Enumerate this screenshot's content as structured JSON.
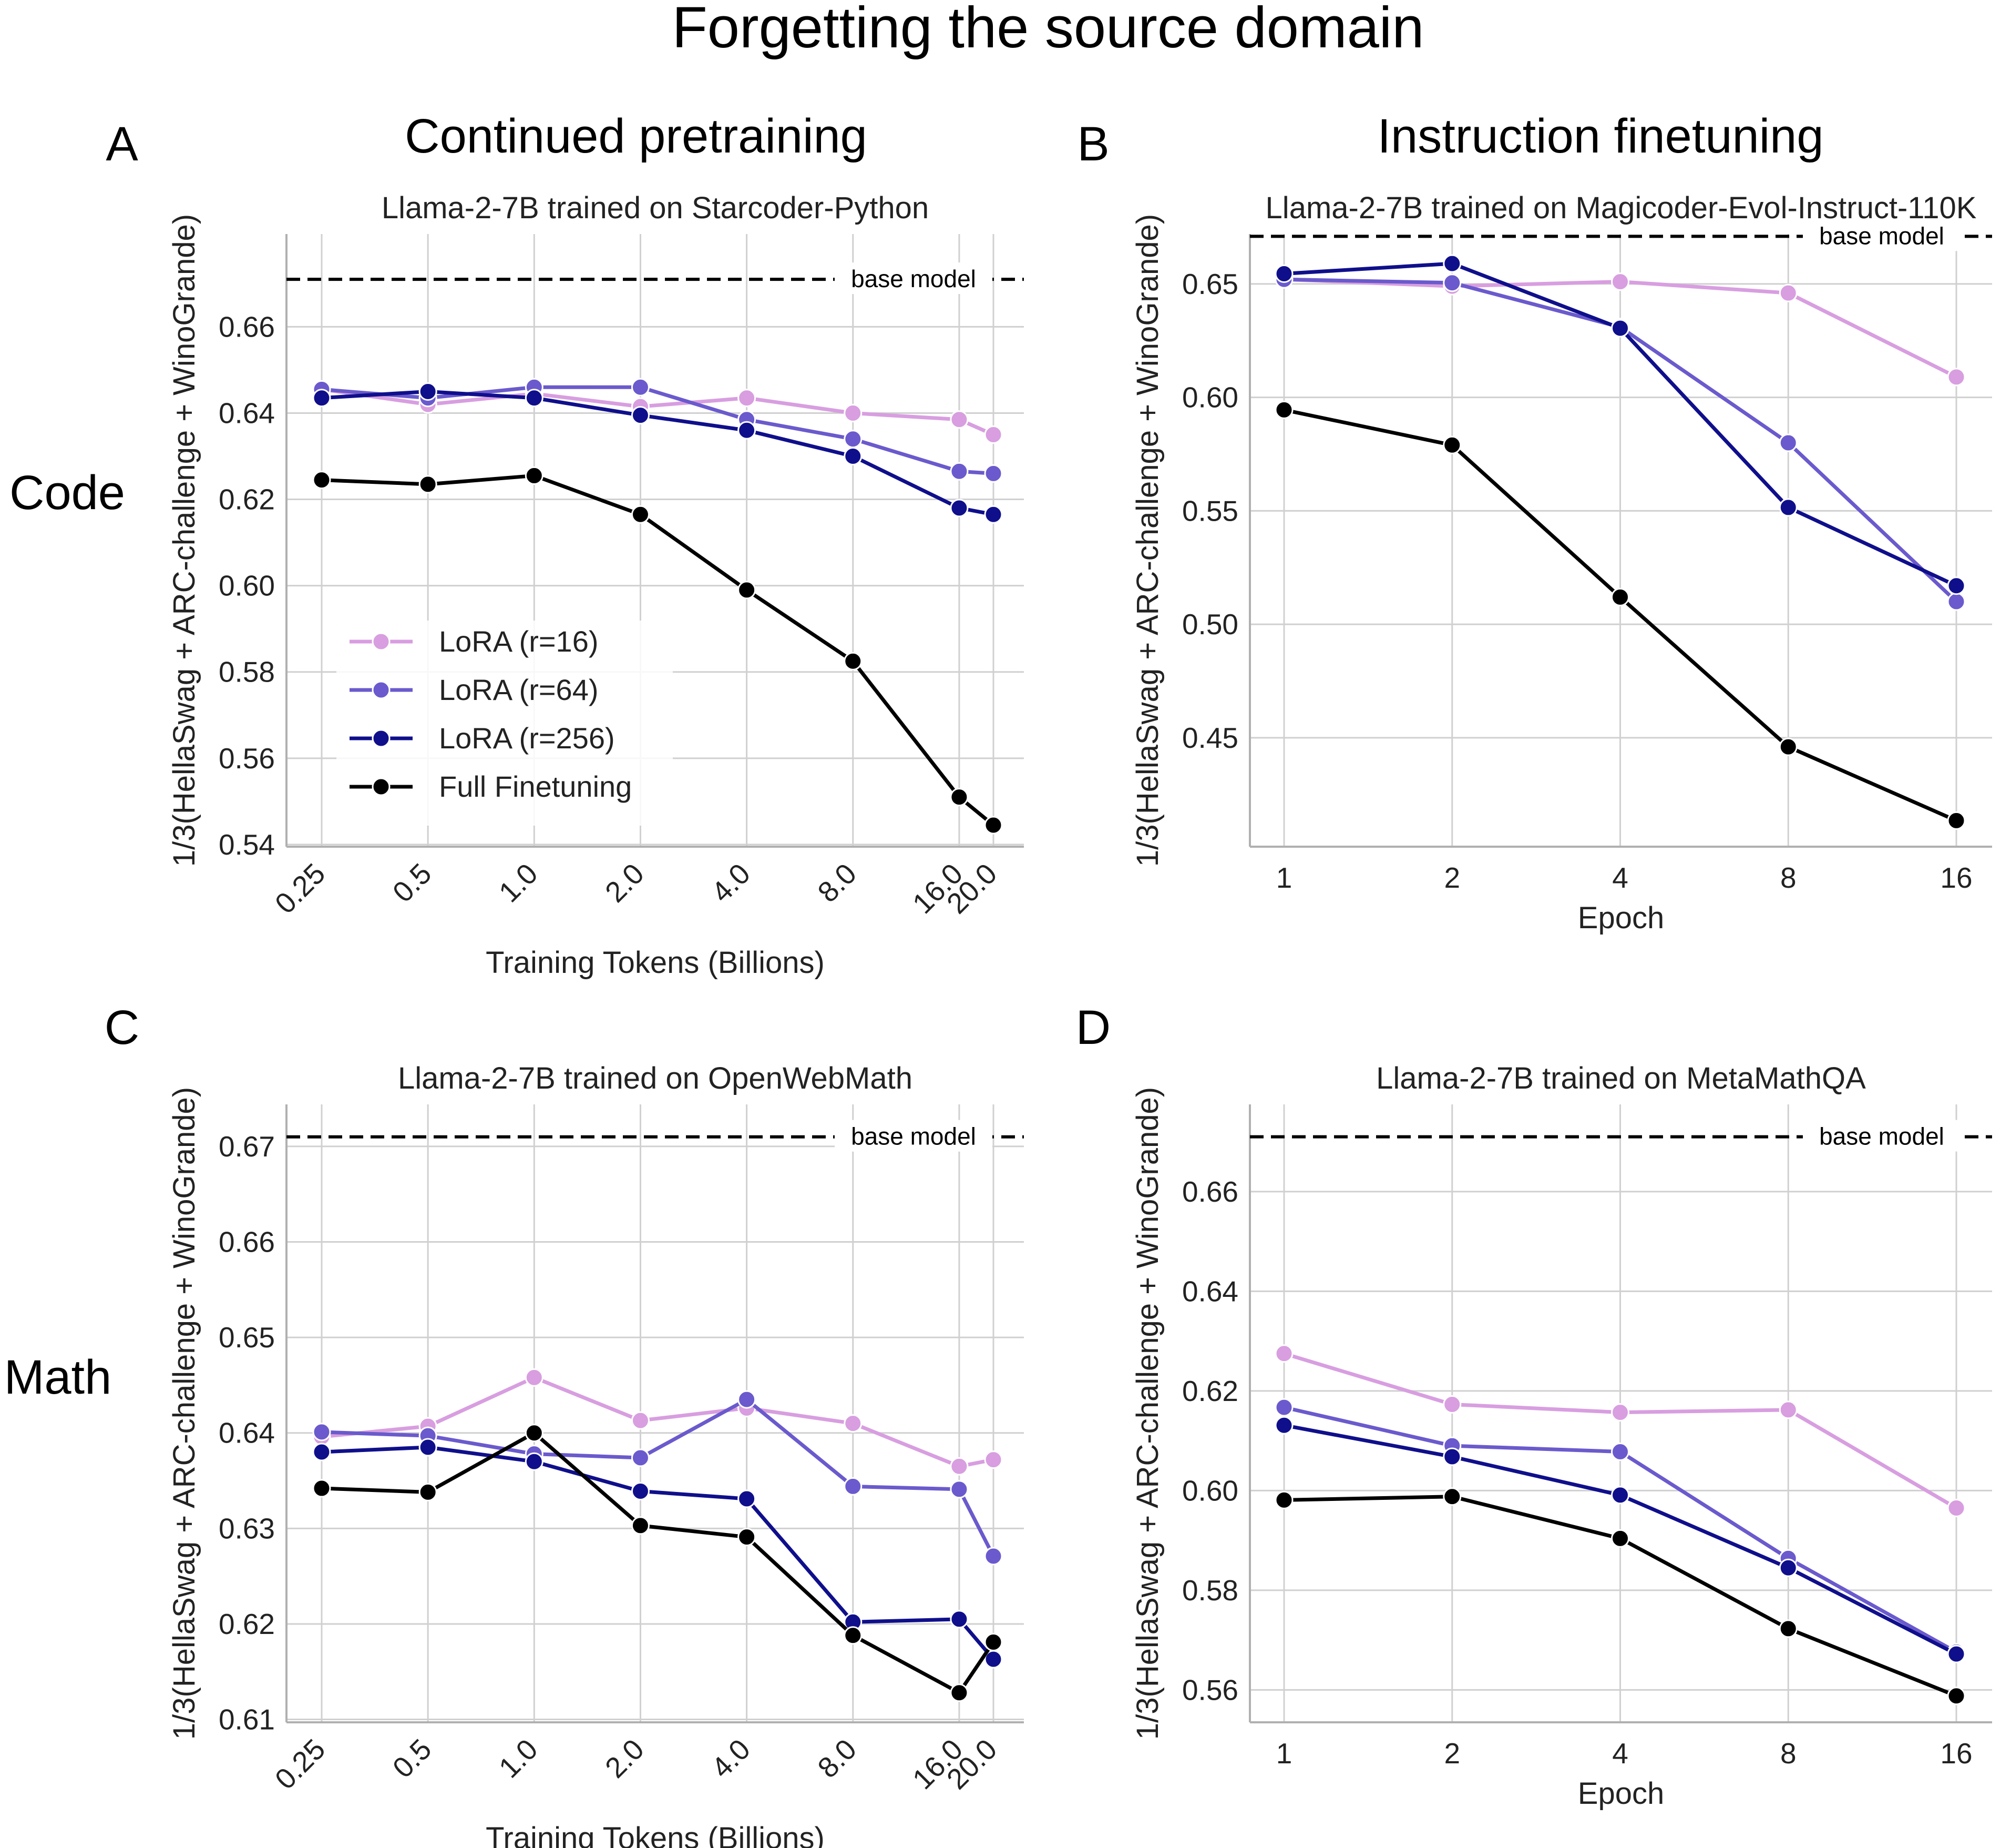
{
  "figure": {
    "title": "Forgetting the source domain",
    "column_titles": [
      "Continued pretraining",
      "Instruction finetuning"
    ],
    "row_labels": [
      "Code",
      "Math"
    ],
    "panel_letters": [
      "A",
      "B",
      "C",
      "D"
    ]
  },
  "legend": {
    "entries": [
      "LoRA (r=16)",
      "LoRA (r=64)",
      "LoRA (r=256)",
      "Full Finetuning"
    ]
  },
  "colors": {
    "lora16": "#d89ee0",
    "lora64": "#6a5acd",
    "lora256": "#0f0f8c",
    "full": "#000000",
    "grid": "#d0d0d0",
    "axis": "#b0b0b0"
  },
  "chart_data": [
    {
      "type": "line",
      "panel": "A",
      "title": "Llama-2-7B trained on Starcoder-Python",
      "xlabel": "Training Tokens (Billions)",
      "ylabel": "1/3(HellaSwag + ARC-challenge + WinoGrande)",
      "x_scale": "log",
      "x": [
        0.25,
        0.5,
        1.0,
        2.0,
        4.0,
        8.0,
        16.0,
        20.0
      ],
      "x_tick_labels": [
        "0.25",
        "0.5",
        "1.0",
        "2.0",
        "4.0",
        "8.0",
        "16.0",
        "20.0"
      ],
      "ylim": [
        0.5395,
        0.6815
      ],
      "y_ticks": [
        0.54,
        0.56,
        0.58,
        0.6,
        0.62,
        0.64,
        0.66
      ],
      "y_tick_labels": [
        "0.54",
        "0.56",
        "0.58",
        "0.60",
        "0.62",
        "0.64",
        "0.66"
      ],
      "baseline": {
        "value": 0.671,
        "label": "base model"
      },
      "legend_position": "center-left",
      "series": [
        {
          "name": "LoRA (r=16)",
          "color_key": "lora16",
          "values": [
            0.6455,
            0.642,
            0.6445,
            0.6415,
            0.6435,
            0.64,
            0.6385,
            0.635
          ]
        },
        {
          "name": "LoRA (r=64)",
          "color_key": "lora64",
          "values": [
            0.6455,
            0.6435,
            0.646,
            0.646,
            0.6385,
            0.634,
            0.6265,
            0.626
          ]
        },
        {
          "name": "LoRA (r=256)",
          "color_key": "lora256",
          "values": [
            0.6435,
            0.645,
            0.6435,
            0.6395,
            0.636,
            0.63,
            0.618,
            0.6165
          ]
        },
        {
          "name": "Full Finetuning",
          "color_key": "full",
          "values": [
            0.6245,
            0.6235,
            0.6255,
            0.6165,
            0.599,
            0.5825,
            0.551,
            0.5445
          ]
        }
      ]
    },
    {
      "type": "line",
      "panel": "B",
      "title": "Llama-2-7B trained on Magicoder-Evol-Instruct-110K",
      "xlabel": "Epoch",
      "ylabel": "1/3(HellaSwag + ARC-challenge + WinoGrande)",
      "x_scale": "log",
      "x": [
        1,
        2,
        4,
        8,
        16
      ],
      "x_tick_labels": [
        "1",
        "2",
        "4",
        "8",
        "16"
      ],
      "ylim": [
        0.402,
        0.672
      ],
      "y_ticks": [
        0.45,
        0.5,
        0.55,
        0.6,
        0.65
      ],
      "y_tick_labels": [
        "0.45",
        "0.50",
        "0.55",
        "0.60",
        "0.65"
      ],
      "baseline": {
        "value": 0.671,
        "label": "base model"
      },
      "series": [
        {
          "name": "LoRA (r=16)",
          "color_key": "lora16",
          "values": [
            0.652,
            0.649,
            0.651,
            0.646,
            0.609
          ]
        },
        {
          "name": "LoRA (r=64)",
          "color_key": "lora64",
          "values": [
            0.652,
            0.6505,
            0.631,
            0.58,
            0.51
          ]
        },
        {
          "name": "LoRA (r=256)",
          "color_key": "lora256",
          "values": [
            0.6545,
            0.659,
            0.6305,
            0.5515,
            0.517
          ]
        },
        {
          "name": "Full Finetuning",
          "color_key": "full",
          "values": [
            0.5945,
            0.579,
            0.512,
            0.446,
            0.4135
          ]
        }
      ]
    },
    {
      "type": "line",
      "panel": "C",
      "title": "Llama-2-7B trained on OpenWebMath",
      "xlabel": "Training Tokens (Billions)",
      "ylabel": "1/3(HellaSwag + ARC-challenge + WinoGrande)",
      "x_scale": "log",
      "x": [
        0.25,
        0.5,
        1.0,
        2.0,
        4.0,
        8.0,
        16.0,
        20.0
      ],
      "x_tick_labels": [
        "0.25",
        "0.5",
        "1.0",
        "2.0",
        "4.0",
        "8.0",
        "16.0",
        "20.0"
      ],
      "ylim": [
        0.6097,
        0.6744
      ],
      "y_ticks": [
        0.61,
        0.62,
        0.63,
        0.64,
        0.65,
        0.66,
        0.67
      ],
      "y_tick_labels": [
        "0.61",
        "0.62",
        "0.63",
        "0.64",
        "0.65",
        "0.66",
        "0.67"
      ],
      "baseline": {
        "value": 0.671,
        "label": "base model"
      },
      "series": [
        {
          "name": "LoRA (r=16)",
          "color_key": "lora16",
          "values": [
            0.6396,
            0.6407,
            0.6458,
            0.6413,
            0.6426,
            0.641,
            0.6365,
            0.6372
          ]
        },
        {
          "name": "LoRA (r=64)",
          "color_key": "lora64",
          "values": [
            0.6401,
            0.6397,
            0.6378,
            0.6374,
            0.6435,
            0.6344,
            0.6341,
            0.6271
          ]
        },
        {
          "name": "LoRA (r=256)",
          "color_key": "lora256",
          "values": [
            0.638,
            0.6385,
            0.637,
            0.6339,
            0.6331,
            0.6202,
            0.6205,
            0.6163
          ]
        },
        {
          "name": "Full Finetuning",
          "color_key": "full",
          "values": [
            0.6342,
            0.6338,
            0.64,
            0.6303,
            0.6291,
            0.6188,
            0.6128,
            0.6181
          ]
        }
      ]
    },
    {
      "type": "line",
      "panel": "D",
      "title": "Llama-2-7B trained on MetaMathQA",
      "xlabel": "Epoch",
      "ylabel": "1/3(HellaSwag + ARC-challenge + WinoGrande)",
      "x_scale": "log",
      "x": [
        1,
        2,
        4,
        8,
        16
      ],
      "x_tick_labels": [
        "1",
        "2",
        "4",
        "8",
        "16"
      ],
      "ylim": [
        0.5535,
        0.6775
      ],
      "y_ticks": [
        0.56,
        0.58,
        0.6,
        0.62,
        0.64,
        0.66
      ],
      "y_tick_labels": [
        "0.56",
        "0.58",
        "0.60",
        "0.62",
        "0.64",
        "0.66"
      ],
      "baseline": {
        "value": 0.671,
        "label": "base model"
      },
      "series": [
        {
          "name": "LoRA (r=16)",
          "color_key": "lora16",
          "values": [
            0.6275,
            0.6173,
            0.6157,
            0.6162,
            0.5965
          ]
        },
        {
          "name": "LoRA (r=64)",
          "color_key": "lora64",
          "values": [
            0.6167,
            0.609,
            0.6078,
            0.5864,
            0.5676
          ]
        },
        {
          "name": "LoRA (r=256)",
          "color_key": "lora256",
          "values": [
            0.6131,
            0.6068,
            0.5991,
            0.5845,
            0.5672
          ]
        },
        {
          "name": "Full Finetuning",
          "color_key": "full",
          "values": [
            0.5981,
            0.5988,
            0.5904,
            0.5723,
            0.5588
          ]
        }
      ]
    }
  ]
}
